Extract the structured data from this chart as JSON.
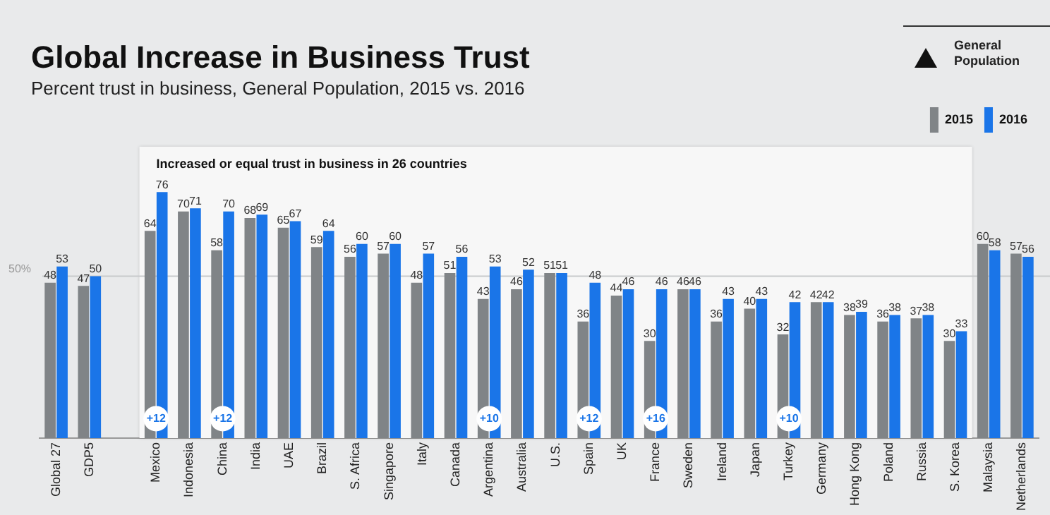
{
  "chart_data": {
    "type": "bar",
    "title": "Global Increase in Business Trust",
    "subtitle": "Percent trust in business, General Population, 2015 vs. 2016",
    "categories": [
      "Global 27",
      "GDP5",
      null,
      "Mexico",
      "Indonesia",
      "China",
      "India",
      "UAE",
      "Brazil",
      "S. Africa",
      "Singapore",
      "Italy",
      "Canada",
      "Argentina",
      "Australia",
      "U.S.",
      "Spain",
      "UK",
      "France",
      "Sweden",
      "Ireland",
      "Japan",
      "Turkey",
      "Germany",
      "Hong Kong",
      "Poland",
      "Russia",
      "S. Korea",
      "Malaysia",
      "Netherlands"
    ],
    "series": [
      {
        "name": "2015",
        "color": "#808487",
        "values": [
          48,
          47,
          null,
          64,
          70,
          58,
          68,
          65,
          59,
          56,
          57,
          48,
          51,
          43,
          46,
          51,
          36,
          44,
          30,
          46,
          36,
          40,
          32,
          42,
          38,
          36,
          37,
          30,
          60,
          57
        ]
      },
      {
        "name": "2016",
        "color": "#1a75e8",
        "values": [
          53,
          50,
          null,
          76,
          71,
          70,
          69,
          67,
          64,
          60,
          60,
          57,
          56,
          53,
          52,
          51,
          48,
          46,
          46,
          46,
          43,
          43,
          42,
          42,
          39,
          38,
          38,
          33,
          58,
          56
        ]
      }
    ],
    "data_labels": true,
    "ylim": [
      0,
      90
    ],
    "tick_labels": "x",
    "grid": false,
    "legend": "top right",
    "ref_lines": [
      {
        "axis": "y",
        "value": 50,
        "label": "50%",
        "color": "#c8cacc"
      }
    ],
    "bands": [
      {
        "axis": "x",
        "from": "Mexico",
        "to": "S. Korea",
        "label": "Increased or equal trust in business in 26 countries",
        "color": "#f7f7f7"
      }
    ],
    "annotations": [
      "General Population",
      {
        "text": "+12",
        "x": "Mexico",
        "y": 6
      },
      {
        "text": "+12",
        "x": "China",
        "y": 6
      },
      {
        "text": "+10",
        "x": "Argentina",
        "y": 6
      },
      {
        "text": "+12",
        "x": "Spain",
        "y": 6
      },
      {
        "text": "+16",
        "x": "France",
        "y": 6
      },
      {
        "text": "+10",
        "x": "Turkey",
        "y": 6
      }
    ]
  }
}
